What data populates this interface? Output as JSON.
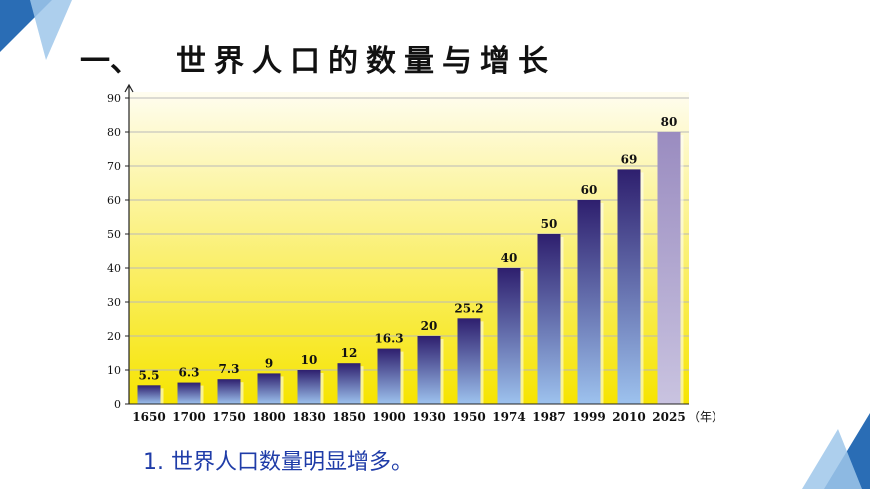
{
  "heading": {
    "number": "一、",
    "title": "世界人口的数量与增长"
  },
  "conclusion": "1. 世界人口数量明显增多。",
  "colors": {
    "bar_top": "#2e1f6e",
    "bar_bottom": "#9dc2ee",
    "future_bar_top": "#9a8cc0",
    "future_bar_bottom": "#c9c3e0",
    "bg_top": "#fffdf0",
    "bg_bottom": "#f6e400",
    "accent_blue": "#1f6fb5",
    "text_blue": "#1f3ca8"
  },
  "chart_data": {
    "type": "bar",
    "title": "",
    "xlabel": "（年）",
    "ylabel": "",
    "ylim": [
      0,
      90
    ],
    "yticks": [
      0,
      10,
      20,
      30,
      40,
      50,
      60,
      70,
      80,
      90
    ],
    "grid": true,
    "categories": [
      "1650",
      "1700",
      "1750",
      "1800",
      "1830",
      "1850",
      "1900",
      "1930",
      "1950",
      "1974",
      "1987",
      "1999",
      "2010",
      "2025"
    ],
    "values": [
      5.5,
      6.3,
      7.3,
      9,
      10,
      12,
      16.3,
      20,
      25.2,
      40,
      50,
      60,
      69,
      80
    ],
    "labels": [
      "5.5",
      "6.3",
      "7.3",
      "9",
      "10",
      "12",
      "16.3",
      "20",
      "25.2",
      "40",
      "50",
      "60",
      "69",
      "80"
    ],
    "projected_index": 13
  }
}
